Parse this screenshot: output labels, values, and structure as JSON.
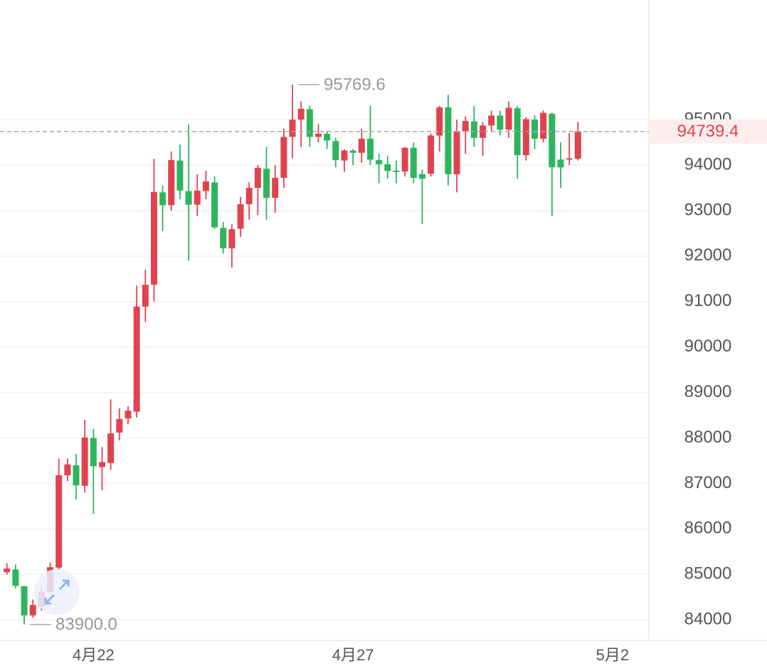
{
  "chart_data": {
    "type": "candlestick",
    "up_color": "#e0434f",
    "down_color": "#2db55d",
    "grid": true,
    "ylim": [
      83550,
      97630
    ],
    "yticks": [
      84000,
      85000,
      86000,
      87000,
      88000,
      89000,
      90000,
      91000,
      92000,
      93000,
      94000,
      95000
    ],
    "xlim": [
      -0.8,
      74.2
    ],
    "xticks": [
      {
        "value": 10,
        "label": "4月22"
      },
      {
        "value": 40,
        "label": "4月27"
      },
      {
        "value": 70,
        "label": "5月2"
      }
    ],
    "high_label": "95769.6",
    "low_label": "83900.0",
    "last_price_label": "94739.4",
    "open": [
      85050,
      85110,
      84740,
      84100,
      84300,
      84610,
      85150,
      87180,
      87400,
      86950,
      88000,
      87360,
      87450,
      88120,
      88430,
      88580,
      90890,
      91370,
      93400,
      93120,
      94100,
      93430,
      93130,
      93430,
      93620,
      92620,
      92170,
      92600,
      93140,
      93500,
      93920,
      93280,
      93720,
      94620,
      95000,
      95230,
      94620,
      94690,
      94530,
      94100,
      94320,
      94270,
      94580,
      94110,
      94020,
      93880,
      93860,
      94380,
      93800,
      93810,
      94650,
      95270,
      93800,
      94740,
      94960,
      94600,
      94870,
      95090,
      94780,
      95250,
      94220,
      95000,
      94580,
      95130,
      94120,
      94120,
      94140
    ],
    "high": [
      85250,
      85220,
      84750,
      84450,
      84720,
      85260,
      87550,
      87550,
      87650,
      88400,
      88200,
      87800,
      88850,
      88650,
      88700,
      91350,
      91700,
      94140,
      93550,
      94300,
      94450,
      94890,
      93800,
      93880,
      93750,
      92750,
      92700,
      93300,
      93620,
      94000,
      94400,
      94000,
      94800,
      95769.6,
      95400,
      95300,
      94900,
      94750,
      94600,
      94350,
      94350,
      94800,
      95300,
      94250,
      94200,
      94100,
      94400,
      94500,
      93900,
      94700,
      95300,
      95550,
      95000,
      95070,
      95300,
      94950,
      95200,
      95200,
      95400,
      95300,
      95050,
      95100,
      95200,
      95150,
      94500,
      94700,
      94950
    ],
    "low": [
      85000,
      84690,
      83900,
      84050,
      84200,
      84580,
      85100,
      87050,
      86650,
      86800,
      86330,
      86850,
      87300,
      87950,
      88300,
      88450,
      90550,
      91000,
      92550,
      93000,
      93250,
      91900,
      92880,
      93250,
      92600,
      92050,
      91750,
      92420,
      92800,
      92900,
      92800,
      92950,
      93500,
      94150,
      94400,
      94400,
      94500,
      94350,
      93950,
      93850,
      94000,
      94050,
      94000,
      93600,
      93700,
      93600,
      93750,
      93600,
      92700,
      93750,
      94300,
      93550,
      93400,
      94250,
      94400,
      94200,
      94750,
      94650,
      94600,
      93700,
      94100,
      94350,
      94500,
      92880,
      93500,
      94000,
      94100
    ],
    "close": [
      85130,
      84750,
      84100,
      84330,
      84620,
      85160,
      87180,
      87420,
      86960,
      88010,
      87380,
      87470,
      88100,
      88420,
      88600,
      90890,
      91370,
      93410,
      93120,
      94110,
      93440,
      93130,
      93440,
      93640,
      92630,
      92170,
      92590,
      93140,
      93500,
      93940,
      93280,
      93720,
      94620,
      95000,
      95240,
      94620,
      94690,
      94540,
      94110,
      94320,
      94270,
      94580,
      94120,
      94020,
      93870,
      93850,
      94380,
      93720,
      93700,
      94650,
      95270,
      93800,
      94740,
      94970,
      94600,
      94870,
      95090,
      94780,
      95260,
      94220,
      95010,
      94580,
      95150,
      93950,
      93950,
      94150,
      94739.4
    ]
  }
}
